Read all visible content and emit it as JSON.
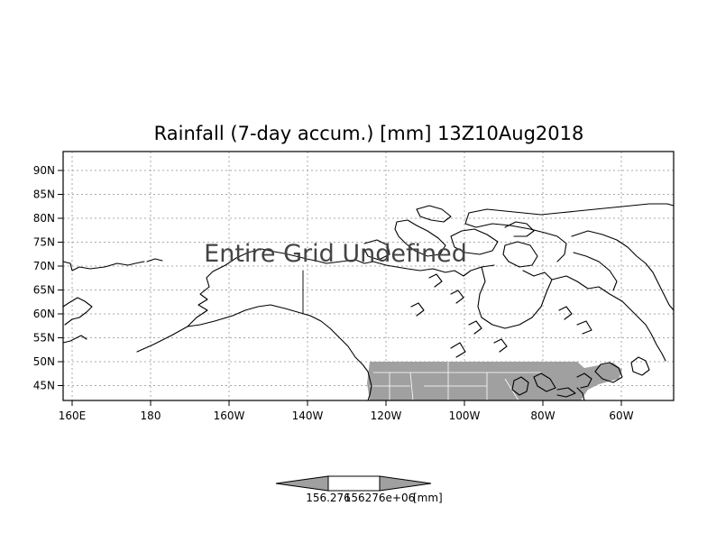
{
  "figure": {
    "title": "Rainfall (7-day accum.) [mm] 13Z10Aug2018",
    "overlay_message": "Entire Grid Undefined",
    "lat_labels": [
      "90N",
      "85N",
      "80N",
      "75N",
      "70N",
      "65N",
      "60N",
      "55N",
      "50N",
      "45N"
    ],
    "lon_labels": [
      "160E",
      "180",
      "160W",
      "140W",
      "120W",
      "100W",
      "80W",
      "60W"
    ],
    "colorbar": {
      "labels": [
        "156.276",
        "156276e+06",
        "[mm]"
      ]
    },
    "colors": {
      "land_shading": "#a0a0a0",
      "coast": "#000000",
      "grid": "#a8a8a8",
      "colorbar_ends": "#a0a0a0"
    }
  }
}
